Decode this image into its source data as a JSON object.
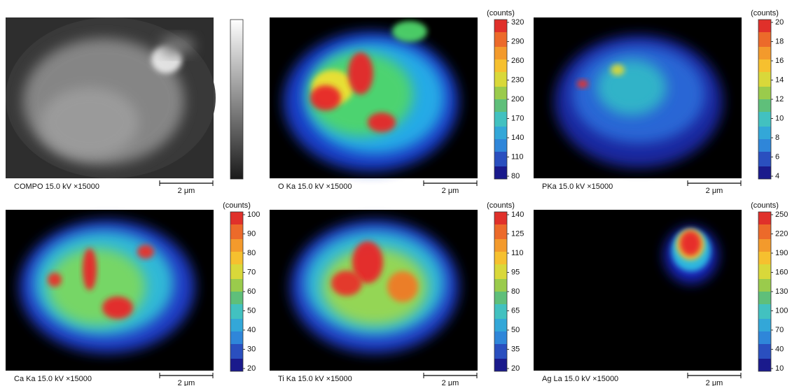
{
  "panels": [
    {
      "caption": "COMPO 15.0 kV ×15000",
      "scale_label": "2 μm"
    },
    {
      "caption": "O Ka 15.0 kV ×15000",
      "scale_label": "2 μm",
      "unit": "(counts)",
      "ticks": [
        80,
        110,
        140,
        170,
        200,
        230,
        260,
        290,
        320
      ]
    },
    {
      "caption": "PKa 15.0 kV ×15000",
      "scale_label": "2 μm",
      "unit": "(counts)",
      "ticks": [
        4,
        6,
        8,
        10,
        12,
        14,
        16,
        18,
        20
      ]
    },
    {
      "caption": "Ca Ka 15.0 kV ×15000",
      "scale_label": "2 μm",
      "unit": "(counts)",
      "ticks": [
        20,
        30,
        40,
        50,
        60,
        70,
        80,
        90,
        100
      ]
    },
    {
      "caption": "Ti Ka 15.0 kV ×15000",
      "scale_label": "2 μm",
      "unit": "(counts)",
      "ticks": [
        20,
        35,
        50,
        65,
        80,
        95,
        110,
        125,
        140
      ]
    },
    {
      "caption": "Ag La 15.0 kV ×15000",
      "scale_label": "2 μm",
      "unit": "(counts)",
      "ticks": [
        10,
        40,
        70,
        100,
        130,
        160,
        190,
        220,
        250
      ]
    }
  ]
}
